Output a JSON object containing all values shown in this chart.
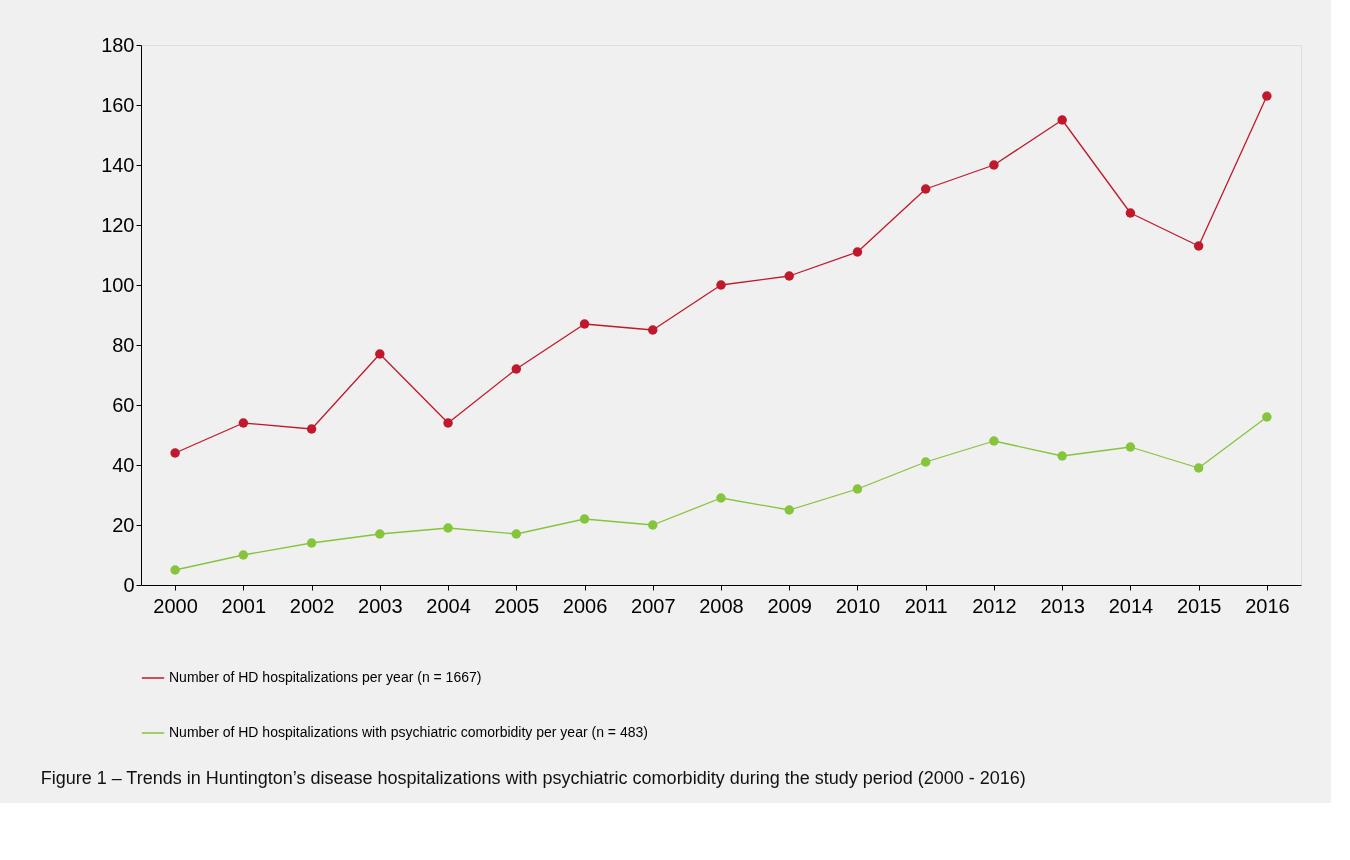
{
  "chart_data": {
    "type": "line",
    "categories": [
      "2000",
      "2001",
      "2002",
      "2003",
      "2004",
      "2005",
      "2006",
      "2007",
      "2008",
      "2009",
      "2010",
      "2011",
      "2012",
      "2013",
      "2014",
      "2015",
      "2016"
    ],
    "series": [
      {
        "name": "Number of HD hospitalizations per year (n = 1667)",
        "color": "#c0192b",
        "values": [
          44,
          54,
          52,
          77,
          54,
          72,
          87,
          85,
          100,
          103,
          111,
          132,
          140,
          155,
          124,
          113,
          163
        ]
      },
      {
        "name": "Number of HD hospitalizations with psychiatric comorbidity per year (n = 483)",
        "color": "#86c43c",
        "values": [
          5,
          10,
          14,
          17,
          19,
          17,
          22,
          20,
          29,
          25,
          32,
          41,
          48,
          43,
          46,
          39,
          56
        ]
      }
    ],
    "ylim": [
      0,
      180
    ],
    "yticks": [
      0,
      20,
      40,
      60,
      80,
      100,
      120,
      140,
      160,
      180
    ],
    "grid": false,
    "legend": "bottom",
    "marker": "circle",
    "line_style": "solid",
    "annotations": [
      "Figure 1 – Trends in Huntington’s disease hospitalizations with psychiatric comorbidity during the study period (2000 - 2016)"
    ]
  }
}
